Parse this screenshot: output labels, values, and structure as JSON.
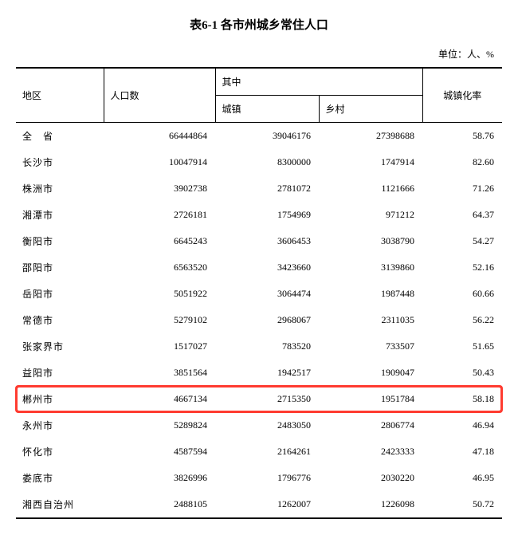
{
  "title": "表6-1 各市州城乡常住人口",
  "unit": "单位：人、%",
  "headers": {
    "region": "地区",
    "population": "人口数",
    "among": "其中",
    "urban": "城镇",
    "rural": "乡村",
    "rate": "城镇化率"
  },
  "highlight_region": "郴州市",
  "highlight_color": "#ff3b30",
  "rows": [
    {
      "region": "全　省",
      "pop": "66444864",
      "urban": "39046176",
      "rural": "27398688",
      "rate": "58.76"
    },
    {
      "region": "长沙市",
      "pop": "10047914",
      "urban": "8300000",
      "rural": "1747914",
      "rate": "82.60"
    },
    {
      "region": "株洲市",
      "pop": "3902738",
      "urban": "2781072",
      "rural": "1121666",
      "rate": "71.26"
    },
    {
      "region": "湘潭市",
      "pop": "2726181",
      "urban": "1754969",
      "rural": "971212",
      "rate": "64.37"
    },
    {
      "region": "衡阳市",
      "pop": "6645243",
      "urban": "3606453",
      "rural": "3038790",
      "rate": "54.27"
    },
    {
      "region": "邵阳市",
      "pop": "6563520",
      "urban": "3423660",
      "rural": "3139860",
      "rate": "52.16"
    },
    {
      "region": "岳阳市",
      "pop": "5051922",
      "urban": "3064474",
      "rural": "1987448",
      "rate": "60.66"
    },
    {
      "region": "常德市",
      "pop": "5279102",
      "urban": "2968067",
      "rural": "2311035",
      "rate": "56.22"
    },
    {
      "region": "张家界市",
      "pop": "1517027",
      "urban": "783520",
      "rural": "733507",
      "rate": "51.65"
    },
    {
      "region": "益阳市",
      "pop": "3851564",
      "urban": "1942517",
      "rural": "1909047",
      "rate": "50.43"
    },
    {
      "region": "郴州市",
      "pop": "4667134",
      "urban": "2715350",
      "rural": "1951784",
      "rate": "58.18"
    },
    {
      "region": "永州市",
      "pop": "5289824",
      "urban": "2483050",
      "rural": "2806774",
      "rate": "46.94"
    },
    {
      "region": "怀化市",
      "pop": "4587594",
      "urban": "2164261",
      "rural": "2423333",
      "rate": "47.18"
    },
    {
      "region": "娄底市",
      "pop": "3826996",
      "urban": "1796776",
      "rural": "2030220",
      "rate": "46.95"
    },
    {
      "region": "湘西自治州",
      "pop": "2488105",
      "urban": "1262007",
      "rural": "1226098",
      "rate": "50.72"
    }
  ]
}
